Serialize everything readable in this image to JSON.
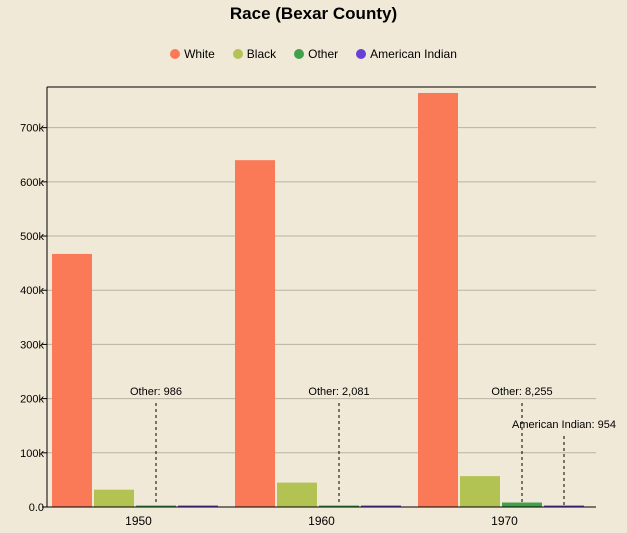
{
  "chart_data": {
    "type": "bar",
    "title": "Race (Bexar County)",
    "xlabel": "",
    "ylabel": "",
    "categories": [
      "1950",
      "1960",
      "1970"
    ],
    "series": [
      {
        "name": "White",
        "color": "#fa7a58",
        "values": [
          467000,
          640000,
          764000
        ]
      },
      {
        "name": "Black",
        "color": "#b2c353",
        "values": [
          32000,
          45000,
          57000
        ]
      },
      {
        "name": "Other",
        "color": "#42a04a",
        "values": [
          986,
          2081,
          8255
        ]
      },
      {
        "name": "American Indian",
        "color": "#6a3fd8",
        "values": [
          300,
          400,
          954
        ]
      }
    ],
    "ylim": [
      0,
      775000
    ],
    "yticks": [
      0,
      100000,
      200000,
      300000,
      400000,
      500000,
      600000,
      700000
    ],
    "ytick_labels": [
      "0.0",
      "100k",
      "200k",
      "300k",
      "400k",
      "500k",
      "600k",
      "700k"
    ],
    "grid": true,
    "legend_position": "top",
    "annotations": [
      {
        "category": "1950",
        "series": "Other",
        "text": "Other: 986"
      },
      {
        "category": "1960",
        "series": "Other",
        "text": "Other: 2,081"
      },
      {
        "category": "1970",
        "series": "Other",
        "text": "Other: 8,255"
      },
      {
        "category": "1970",
        "series": "American Indian",
        "text": "American Indian: 954"
      }
    ]
  }
}
